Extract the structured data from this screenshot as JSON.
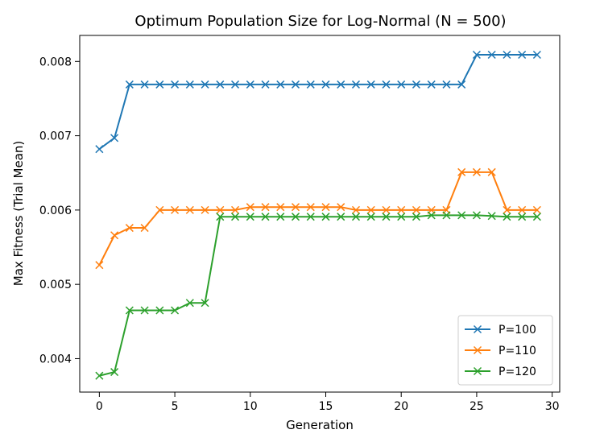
{
  "chart_data": {
    "type": "line",
    "title": "Optimum Population Size for Log-Normal (N = 500)",
    "xlabel": "Generation",
    "ylabel": "Max Fitness (Trial Mean)",
    "xlim": [
      -1.3,
      30.5
    ],
    "ylim": [
      0.00355,
      0.00835
    ],
    "xticks": [
      0,
      5,
      10,
      15,
      20,
      25,
      30
    ],
    "yticks": [
      0.004,
      0.005,
      0.006,
      0.007,
      0.008
    ],
    "ytick_labels": [
      "0.004",
      "0.005",
      "0.006",
      "0.007",
      "0.008"
    ],
    "grid": false,
    "legend_position": "lower right",
    "marker": "x",
    "x": [
      0,
      1,
      2,
      3,
      4,
      5,
      6,
      7,
      8,
      9,
      10,
      11,
      12,
      13,
      14,
      15,
      16,
      17,
      18,
      19,
      20,
      21,
      22,
      23,
      24,
      25,
      26,
      27,
      28,
      29
    ],
    "series": [
      {
        "name": "P=100",
        "color": "#1f77b4",
        "values": [
          0.00682,
          0.00697,
          0.00769,
          0.00769,
          0.00769,
          0.00769,
          0.00769,
          0.00769,
          0.00769,
          0.00769,
          0.00769,
          0.00769,
          0.00769,
          0.00769,
          0.00769,
          0.00769,
          0.00769,
          0.00769,
          0.00769,
          0.00769,
          0.00769,
          0.00769,
          0.00769,
          0.00769,
          0.00769,
          0.00809,
          0.00809,
          0.00809,
          0.00809,
          0.00809
        ]
      },
      {
        "name": "P=110",
        "color": "#ff7f0e",
        "values": [
          0.00526,
          0.00566,
          0.00576,
          0.00576,
          0.006,
          0.006,
          0.006,
          0.006,
          0.006,
          0.006,
          0.00604,
          0.00604,
          0.00604,
          0.00604,
          0.00604,
          0.00604,
          0.00604,
          0.006,
          0.006,
          0.006,
          0.006,
          0.006,
          0.006,
          0.006,
          0.00651,
          0.00651,
          0.00651,
          0.006,
          0.006,
          0.006
        ]
      },
      {
        "name": "P=120",
        "color": "#2ca02c",
        "values": [
          0.00377,
          0.00382,
          0.00465,
          0.00465,
          0.00465,
          0.00465,
          0.00475,
          0.00475,
          0.00591,
          0.00591,
          0.00591,
          0.00591,
          0.00591,
          0.00591,
          0.00591,
          0.00591,
          0.00591,
          0.00591,
          0.00591,
          0.00591,
          0.00591,
          0.00591,
          0.00593,
          0.00593,
          0.00593,
          0.00593,
          0.00592,
          0.00591,
          0.00591,
          0.00591
        ]
      }
    ]
  }
}
